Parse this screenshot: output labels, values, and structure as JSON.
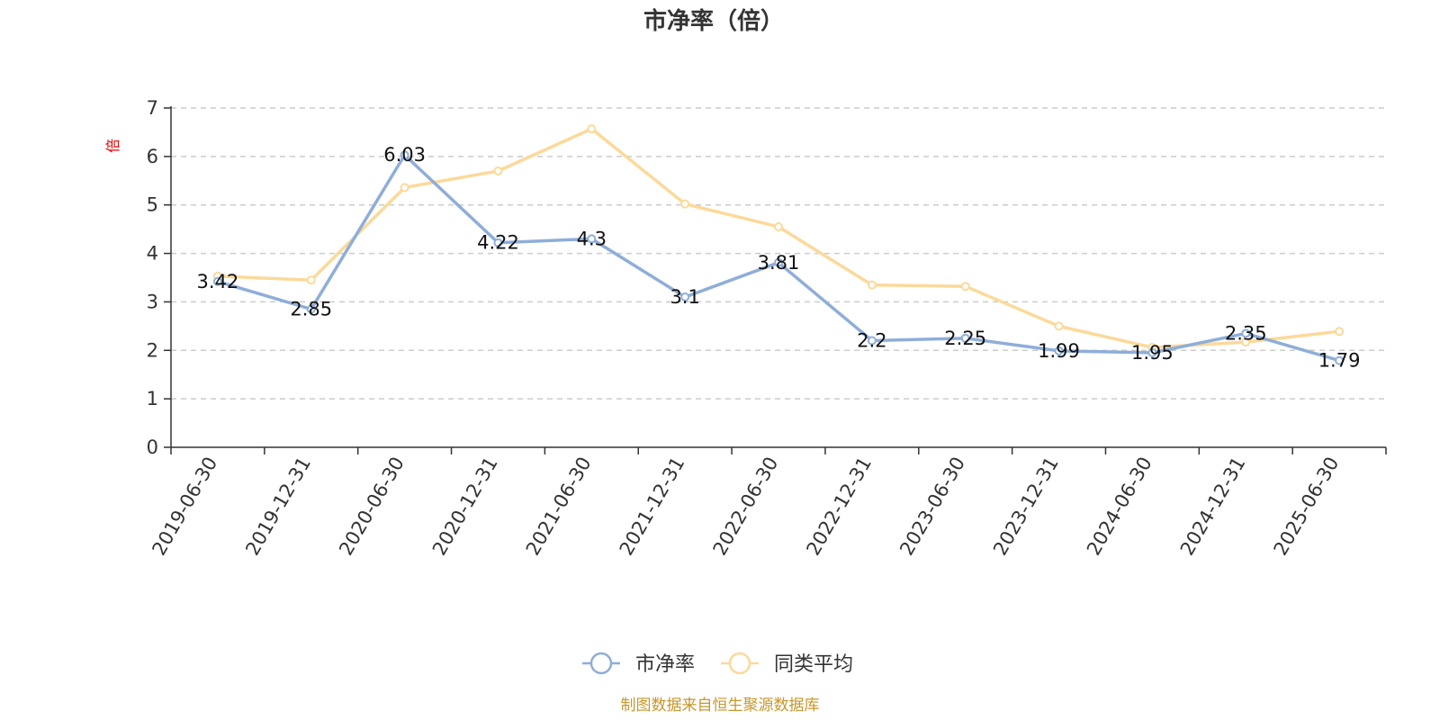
{
  "chart_data": {
    "type": "line",
    "title": "市净率（倍）",
    "y_unit": "倍",
    "ylim": [
      0,
      7
    ],
    "y_ticks": [
      0,
      1,
      2,
      3,
      4,
      5,
      6,
      7
    ],
    "grid": true,
    "legend_position": "bottom-center",
    "categories": [
      "2019-06-30",
      "2019-12-31",
      "2020-06-30",
      "2020-12-31",
      "2021-06-30",
      "2021-12-31",
      "2022-06-30",
      "2022-12-31",
      "2023-06-30",
      "2023-12-31",
      "2024-06-30",
      "2024-12-31",
      "2025-06-30"
    ],
    "series": [
      {
        "name": "市净率",
        "color": "#8eaed9",
        "values": [
          3.42,
          2.85,
          6.03,
          4.22,
          4.3,
          3.1,
          3.81,
          2.2,
          2.25,
          1.99,
          1.95,
          2.35,
          1.79
        ],
        "labels": [
          "3.42",
          "2.85",
          "6.03",
          "4.22",
          "4.3",
          "3.1",
          "3.81",
          "2.2",
          "2.25",
          "1.99",
          "1.95",
          "2.35",
          "1.79"
        ],
        "show_labels": true
      },
      {
        "name": "同类平均",
        "color": "#fcd99a",
        "values": [
          3.53,
          3.45,
          5.36,
          5.7,
          6.57,
          5.02,
          4.55,
          3.35,
          3.32,
          2.5,
          2.06,
          2.17,
          2.39
        ],
        "show_labels": false
      }
    ]
  },
  "source_note": "制图数据来自恒生聚源数据库"
}
